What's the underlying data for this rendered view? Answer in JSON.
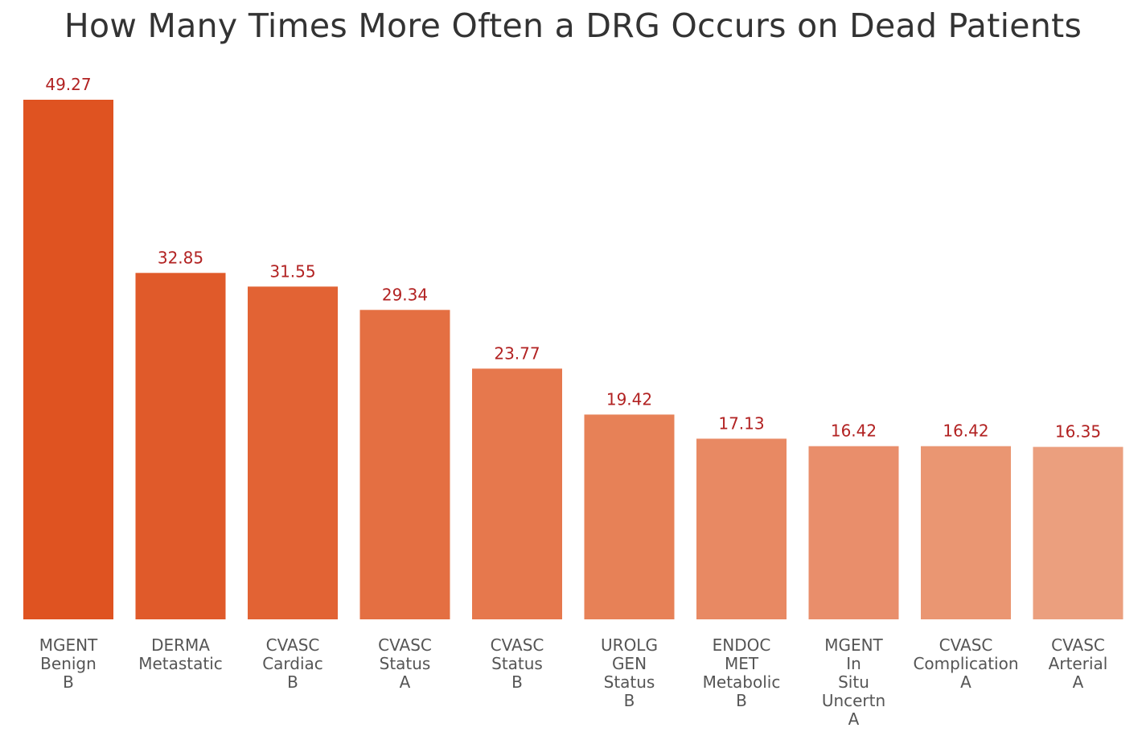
{
  "chart_data": {
    "type": "bar",
    "title": "How Many Times More Often a DRG Occurs on Dead Patients",
    "xlabel": "",
    "ylabel": "",
    "ylim": [
      0,
      52
    ],
    "grid": false,
    "categories": [
      "MGENT\nBenign\nB",
      "DERMA\nMetastatic",
      "CVASC\nCardiac\nB",
      "CVASC\nStatus\nA",
      "CVASC\nStatus\nB",
      "UROLG\nGEN\nStatus\nB",
      "ENDOC\nMET\nMetabolic\nB",
      "MGENT\nIn\nSitu\nUncertn\nA",
      "CVASC\nComplication\nA",
      "CVASC\nArterial\nA"
    ],
    "values": [
      49.27,
      32.85,
      31.55,
      29.34,
      23.77,
      19.42,
      17.13,
      16.42,
      16.42,
      16.35
    ],
    "value_labels": [
      "49.27",
      "32.85",
      "31.55",
      "29.34",
      "23.77",
      "19.42",
      "17.13",
      "16.42",
      "16.42",
      "16.35"
    ],
    "colors": [
      "#df5321",
      "#e05a2a",
      "#e26334",
      "#e46f42",
      "#e6784d",
      "#e78157",
      "#e88963",
      "#e98e6b",
      "#ea9672",
      "#eb9f7e"
    ],
    "value_label_color": "#b22222"
  }
}
